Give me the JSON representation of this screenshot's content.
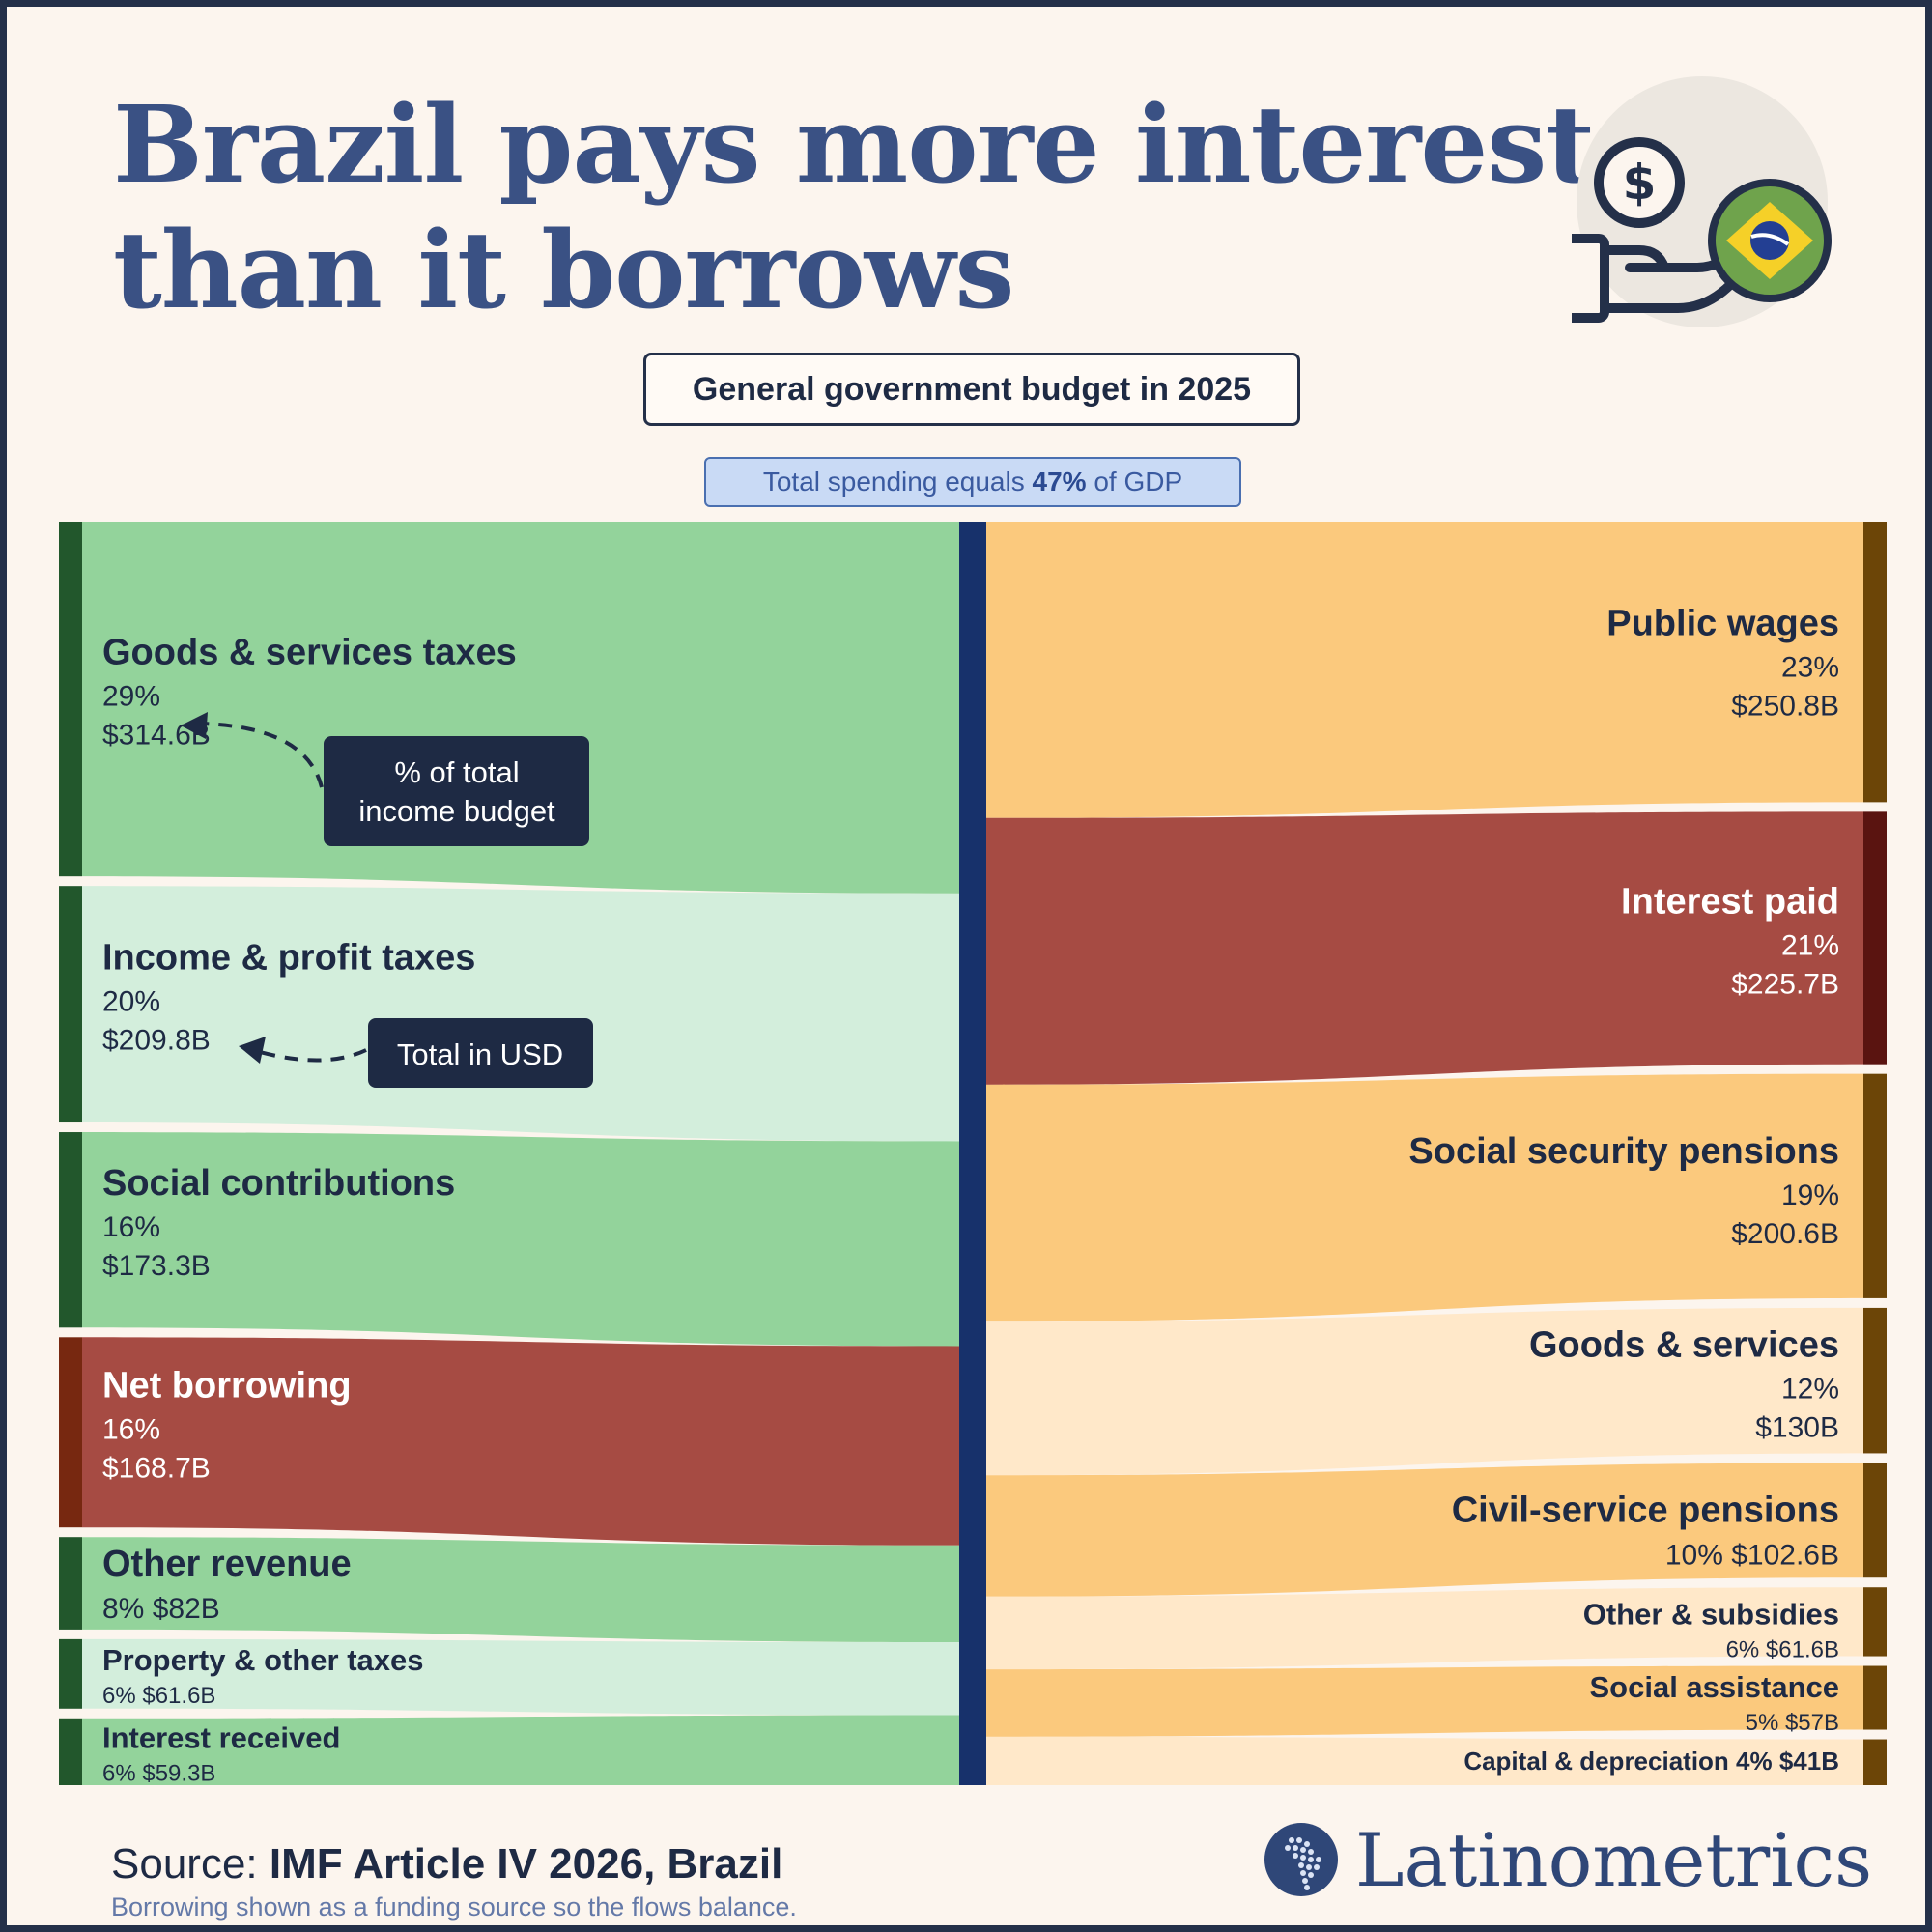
{
  "title": {
    "line1": "Brazil pays more interest",
    "line2": "than it borrows"
  },
  "emblem": {
    "icon": "hand-with-dollar-coin-icon",
    "flag": "brazil-flag-icon"
  },
  "subtitle": "General government budget in 2025",
  "gdp_note": {
    "prefix": "Total spending equals ",
    "value": "47%",
    "suffix": " of GDP"
  },
  "annotations": {
    "percent": "% of total\nincome budget",
    "usd": "Total in USD"
  },
  "chart_data": {
    "type": "sankey",
    "title": "General government budget in 2025",
    "unit": "USD billions",
    "center_node": "",
    "income": [
      {
        "name": "Goods & services taxes",
        "pct": "29%",
        "value": 314.6,
        "label": "$314.6B",
        "style": "big",
        "color": "#93d39b",
        "bar": "#22572c"
      },
      {
        "name": "Income & profit taxes",
        "pct": "20%",
        "value": 209.8,
        "label": "$209.8B",
        "style": "big",
        "color": "#d3eedc",
        "bar": "#22572c"
      },
      {
        "name": "Social contributions",
        "pct": "16%",
        "value": 173.3,
        "label": "$173.3B",
        "style": "big",
        "color": "#93d39b",
        "bar": "#22572c"
      },
      {
        "name": "Net borrowing",
        "pct": "16%",
        "value": 168.7,
        "label": "$168.7B",
        "style": "big",
        "color": "#a64b43",
        "bar": "#772810",
        "light": true
      },
      {
        "name": "Other revenue",
        "pct": "8%",
        "value": 82,
        "label": "$82B",
        "style": "inline",
        "color": "#93d39b",
        "bar": "#22572c"
      },
      {
        "name": "Property & other taxes",
        "pct": "6%",
        "value": 61.6,
        "label": "$61.6B",
        "style": "small",
        "color": "#d3eedc",
        "bar": "#22572c"
      },
      {
        "name": "Interest received",
        "pct": "6%",
        "value": 59.3,
        "label": "$59.3B",
        "style": "small",
        "color": "#93d39b",
        "bar": "#22572c"
      }
    ],
    "spending": [
      {
        "name": "Public wages",
        "pct": "23%",
        "value": 250.8,
        "label": "$250.8B",
        "style": "big",
        "color": "#fbc97d",
        "bar": "#6c4507"
      },
      {
        "name": "Interest paid",
        "pct": "21%",
        "value": 225.7,
        "label": "$225.7B",
        "style": "big",
        "color": "#a64b43",
        "bar": "#5a1410",
        "light": true
      },
      {
        "name": "Social security pensions",
        "pct": "19%",
        "value": 200.6,
        "label": "$200.6B",
        "style": "big",
        "color": "#fbc97d",
        "bar": "#6c4507"
      },
      {
        "name": "Goods & services",
        "pct": "12%",
        "value": 130,
        "label": "$130B",
        "style": "big",
        "color": "#ffe8c9",
        "bar": "#6c4507"
      },
      {
        "name": "Civil-service pensions",
        "pct": "10%",
        "value": 102.6,
        "label": "$102.6B",
        "style": "inline",
        "color": "#fbc97d",
        "bar": "#6c4507"
      },
      {
        "name": "Other & subsidies",
        "pct": "6%",
        "value": 61.6,
        "label": "$61.6B",
        "style": "small",
        "color": "#ffe8c9",
        "bar": "#6c4507"
      },
      {
        "name": "Social assistance",
        "pct": "5%",
        "value": 57,
        "label": "$57B",
        "style": "small",
        "color": "#fbc97d",
        "bar": "#6c4507"
      },
      {
        "name": "Capital & depreciation",
        "pct": "4%",
        "value": 41,
        "label": "$41B",
        "style": "oneline",
        "color": "#ffe8c9",
        "bar": "#6c4507"
      }
    ]
  },
  "source": {
    "prefix": "Source: ",
    "text": "IMF Article IV 2026, Brazil"
  },
  "note": "Borrowing shown as a funding source so the flows balance.",
  "brand": "Latinometrics",
  "colors": {
    "title": "#3a5184",
    "background": "#fcf5ee",
    "center_bar": "#17316b",
    "dark": "#1e2a44"
  }
}
